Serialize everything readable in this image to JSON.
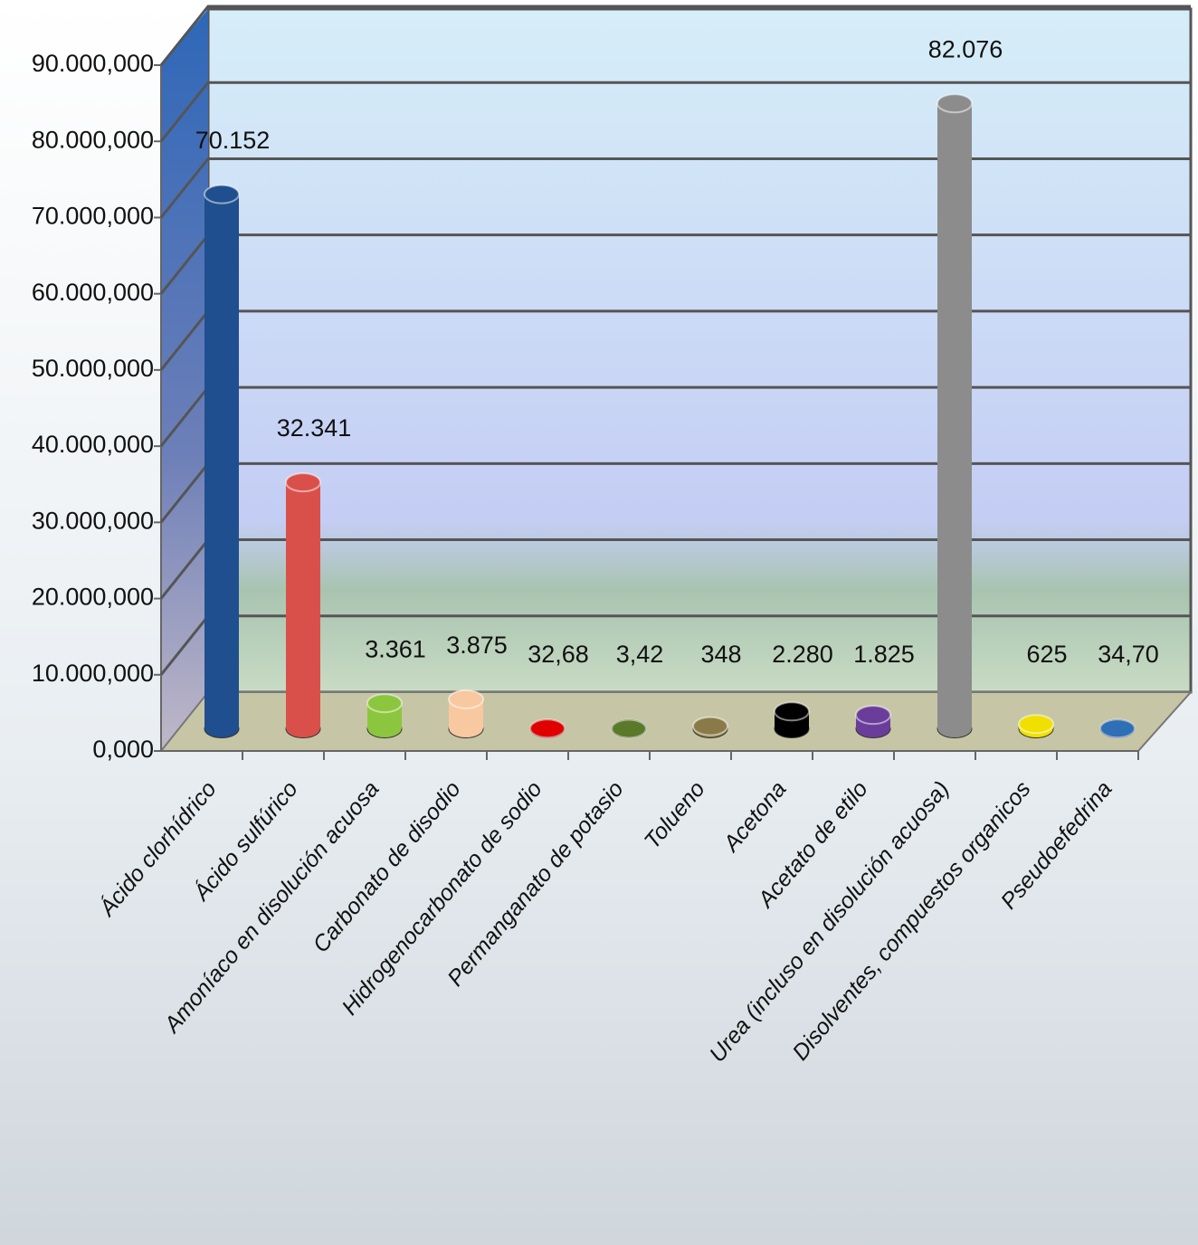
{
  "chart_data": {
    "type": "bar",
    "categories": [
      "Ácido clorhídrico",
      "Ácido sulfúrico",
      "Amoníaco en disolución acuosa",
      "Carbonato de disodio",
      "Hidrogenocarbonato de sodio",
      "Permanganato de potasio",
      "Tolueno",
      "Acetona",
      "Acetato de etilo",
      "Urea (incluso en disolución acuosa)",
      "Disolventes, compuestos organicos",
      "Pseudoefedrina"
    ],
    "values": [
      70152,
      32341,
      3361,
      3875,
      32.68,
      3.42,
      348,
      2280,
      1825,
      82076,
      625,
      34.7
    ],
    "value_labels": [
      "70.152",
      "32.341",
      "3.361",
      "3.875",
      "32,68",
      "3,42",
      "348",
      "2.280",
      "1.825",
      "82.076",
      "625",
      "34,70"
    ],
    "colors": [
      "#1f4f8e",
      "#d9504a",
      "#8cc63f",
      "#f8c8a0",
      "#e00000",
      "#5a7a2a",
      "#8a7a48",
      "#000000",
      "#6a3d9a",
      "#8c8c8c",
      "#f0e000",
      "#2e6fb5"
    ],
    "ylim": [
      0,
      100000
    ],
    "yticks": [
      {
        "value": 0,
        "label": "0,000"
      },
      {
        "value": 10000,
        "label": "10.000,000"
      },
      {
        "value": 20000,
        "label": "20.000,000"
      },
      {
        "value": 30000,
        "label": "30.000,000"
      },
      {
        "value": 40000,
        "label": "40.000,000"
      },
      {
        "value": 50000,
        "label": "50.000,000"
      },
      {
        "value": 60000,
        "label": "60.000,000"
      },
      {
        "value": 70000,
        "label": "70.000,000"
      },
      {
        "value": 80000,
        "label": "80.000,000"
      },
      {
        "value": 90000,
        "label": "90.000,000"
      }
    ],
    "grid": true
  }
}
